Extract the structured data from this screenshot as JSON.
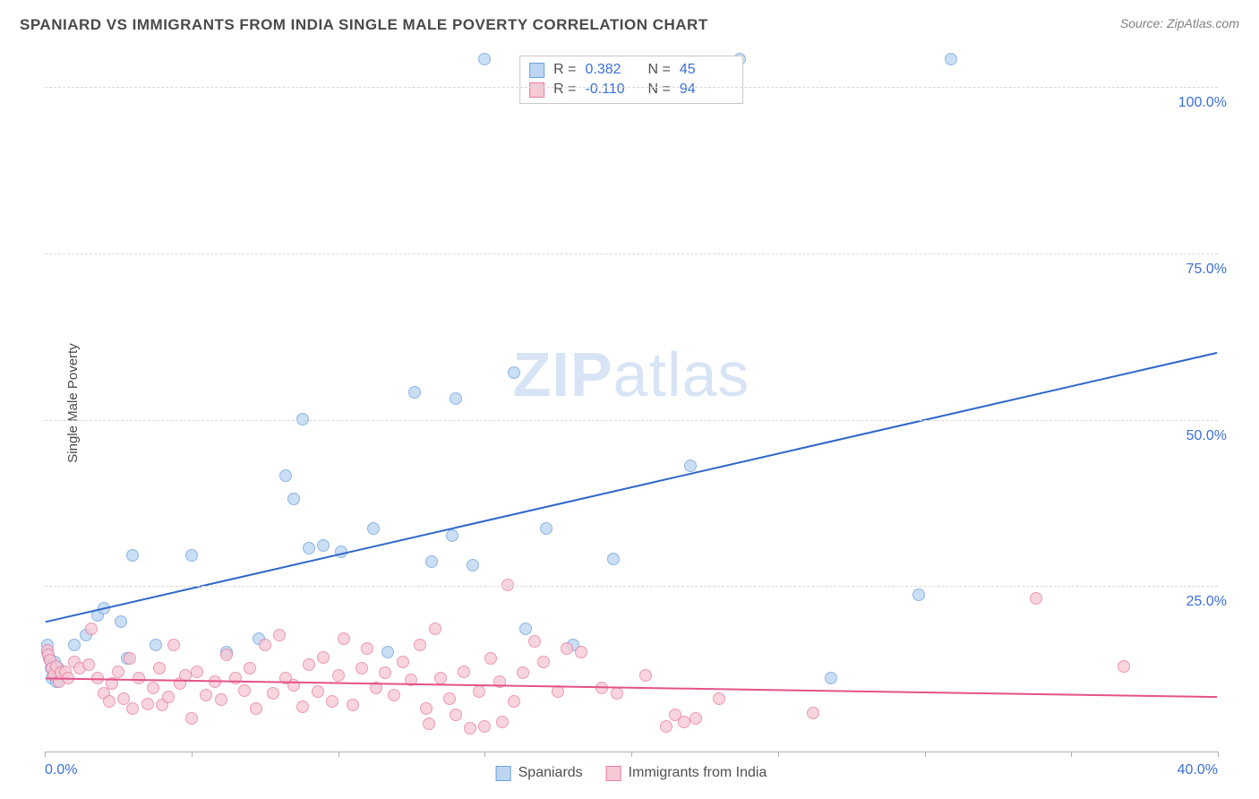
{
  "header": {
    "title": "SPANIARD VS IMMIGRANTS FROM INDIA SINGLE MALE POVERTY CORRELATION CHART",
    "source": "Source: ZipAtlas.com"
  },
  "y_axis_label": "Single Male Poverty",
  "watermark": {
    "bold": "ZIP",
    "rest": "atlas"
  },
  "chart": {
    "type": "scatter",
    "xlim": [
      0,
      40
    ],
    "ylim": [
      0,
      105
    ],
    "x_ticks": [
      0,
      5,
      10,
      15,
      20,
      25,
      30,
      35,
      40
    ],
    "x_tick_labels": {
      "0": "0.0%",
      "40": "40.0%"
    },
    "y_grid": [
      25,
      50,
      75,
      100
    ],
    "y_tick_labels": {
      "25": "25.0%",
      "50": "50.0%",
      "75": "75.0%",
      "100": "100.0%"
    },
    "background_color": "#ffffff",
    "grid_color": "#d8d8d8",
    "axis_color": "#b0b0b0",
    "point_radius": 7,
    "point_stroke_width": 1,
    "series": [
      {
        "name": "Spaniards",
        "fill": "#bcd6f2",
        "stroke": "#6fa2dd",
        "line_color": "#2e66c9",
        "line_width": 2,
        "r_value": "0.382",
        "n_value": "45",
        "trend": {
          "x1": 0,
          "y1": 19.5,
          "x2": 40,
          "y2": 60
        },
        "points": [
          [
            0.1,
            15
          ],
          [
            0.1,
            16
          ],
          [
            0.15,
            14
          ],
          [
            0.2,
            12.5
          ],
          [
            0.2,
            13.5
          ],
          [
            0.25,
            11
          ],
          [
            0.3,
            12
          ],
          [
            0.35,
            13.5
          ],
          [
            0.4,
            10.5
          ],
          [
            0.45,
            12.5
          ],
          [
            1.0,
            16
          ],
          [
            1.4,
            17.5
          ],
          [
            1.8,
            20.5
          ],
          [
            2.0,
            21.5
          ],
          [
            2.6,
            19.5
          ],
          [
            2.8,
            14
          ],
          [
            3.0,
            29.5
          ],
          [
            3.8,
            16
          ],
          [
            5.0,
            29.5
          ],
          [
            6.2,
            15
          ],
          [
            7.3,
            17
          ],
          [
            8.2,
            41.5
          ],
          [
            8.5,
            38
          ],
          [
            8.8,
            50
          ],
          [
            9.0,
            30.5
          ],
          [
            9.5,
            31
          ],
          [
            10.1,
            30
          ],
          [
            11.2,
            33.5
          ],
          [
            11.7,
            15
          ],
          [
            12.6,
            54
          ],
          [
            13.2,
            28.5
          ],
          [
            13.9,
            32.5
          ],
          [
            14.0,
            53
          ],
          [
            14.6,
            28
          ],
          [
            15.0,
            104
          ],
          [
            16.0,
            57
          ],
          [
            16.4,
            18.5
          ],
          [
            17.1,
            33.5
          ],
          [
            18.0,
            16
          ],
          [
            19.4,
            29
          ],
          [
            22.0,
            43
          ],
          [
            23.7,
            104
          ],
          [
            26.8,
            11
          ],
          [
            29.8,
            23.5
          ],
          [
            30.9,
            104
          ]
        ]
      },
      {
        "name": "Immigrants from India",
        "fill": "#f6c9d5",
        "stroke": "#e77ea0",
        "line_color": "#e5518a",
        "line_width": 2,
        "r_value": "-0.110",
        "n_value": "94",
        "trend": {
          "x1": 0,
          "y1": 11,
          "x2": 40,
          "y2": 8.2
        },
        "points": [
          [
            0.1,
            15.2
          ],
          [
            0.12,
            14.5
          ],
          [
            0.18,
            13.8
          ],
          [
            0.25,
            12.5
          ],
          [
            0.3,
            11.5
          ],
          [
            0.4,
            12.8
          ],
          [
            0.5,
            10.5
          ],
          [
            0.55,
            11.8
          ],
          [
            0.7,
            12
          ],
          [
            0.8,
            11
          ],
          [
            1.0,
            13.5
          ],
          [
            1.2,
            12.5
          ],
          [
            1.5,
            13
          ],
          [
            1.6,
            18.5
          ],
          [
            1.8,
            11
          ],
          [
            2.0,
            8.8
          ],
          [
            2.2,
            7.5
          ],
          [
            2.3,
            10.2
          ],
          [
            2.5,
            12
          ],
          [
            2.7,
            8
          ],
          [
            2.9,
            14
          ],
          [
            3.0,
            6.5
          ],
          [
            3.2,
            11
          ],
          [
            3.5,
            7.2
          ],
          [
            3.7,
            9.5
          ],
          [
            3.9,
            12.5
          ],
          [
            4.0,
            7
          ],
          [
            4.2,
            8.2
          ],
          [
            4.4,
            16
          ],
          [
            4.6,
            10.3
          ],
          [
            4.8,
            11.5
          ],
          [
            5.0,
            5
          ],
          [
            5.2,
            12
          ],
          [
            5.5,
            8.5
          ],
          [
            5.8,
            10.5
          ],
          [
            6.0,
            7.8
          ],
          [
            6.2,
            14.5
          ],
          [
            6.5,
            11
          ],
          [
            6.8,
            9.2
          ],
          [
            7.0,
            12.5
          ],
          [
            7.2,
            6.5
          ],
          [
            7.5,
            16
          ],
          [
            7.8,
            8.8
          ],
          [
            8.0,
            17.5
          ],
          [
            8.2,
            11
          ],
          [
            8.5,
            10
          ],
          [
            8.8,
            6.8
          ],
          [
            9.0,
            13
          ],
          [
            9.3,
            9
          ],
          [
            9.5,
            14.2
          ],
          [
            9.8,
            7.5
          ],
          [
            10.0,
            11.5
          ],
          [
            10.2,
            17
          ],
          [
            10.5,
            7
          ],
          [
            10.8,
            12.5
          ],
          [
            11.0,
            15.5
          ],
          [
            11.3,
            9.5
          ],
          [
            11.6,
            11.8
          ],
          [
            11.9,
            8.5
          ],
          [
            12.2,
            13.5
          ],
          [
            12.5,
            10.8
          ],
          [
            12.8,
            16
          ],
          [
            13.0,
            6.5
          ],
          [
            13.1,
            4.2
          ],
          [
            13.3,
            18.5
          ],
          [
            13.5,
            11
          ],
          [
            13.8,
            8
          ],
          [
            14.0,
            5.5
          ],
          [
            14.3,
            12
          ],
          [
            14.5,
            3.5
          ],
          [
            14.8,
            9
          ],
          [
            15.0,
            3.8
          ],
          [
            15.2,
            14
          ],
          [
            15.5,
            10.5
          ],
          [
            15.6,
            4.5
          ],
          [
            15.8,
            25
          ],
          [
            16.0,
            7.5
          ],
          [
            16.3,
            11.8
          ],
          [
            16.7,
            16.5
          ],
          [
            17.0,
            13.5
          ],
          [
            17.5,
            9
          ],
          [
            17.8,
            15.5
          ],
          [
            18.3,
            15
          ],
          [
            19.0,
            9.5
          ],
          [
            19.5,
            8.8
          ],
          [
            20.5,
            11.5
          ],
          [
            21.2,
            3.8
          ],
          [
            21.5,
            5.5
          ],
          [
            21.8,
            4.5
          ],
          [
            22.2,
            5
          ],
          [
            23.0,
            8
          ],
          [
            26.2,
            5.8
          ],
          [
            33.8,
            23
          ],
          [
            36.8,
            12.8
          ]
        ]
      }
    ]
  },
  "legend_top": {
    "r_label": "R =",
    "n_label": "N =",
    "value_color": "#3b6fd6"
  },
  "legend_bottom_items": [
    "Spaniards",
    "Immigrants from India"
  ]
}
